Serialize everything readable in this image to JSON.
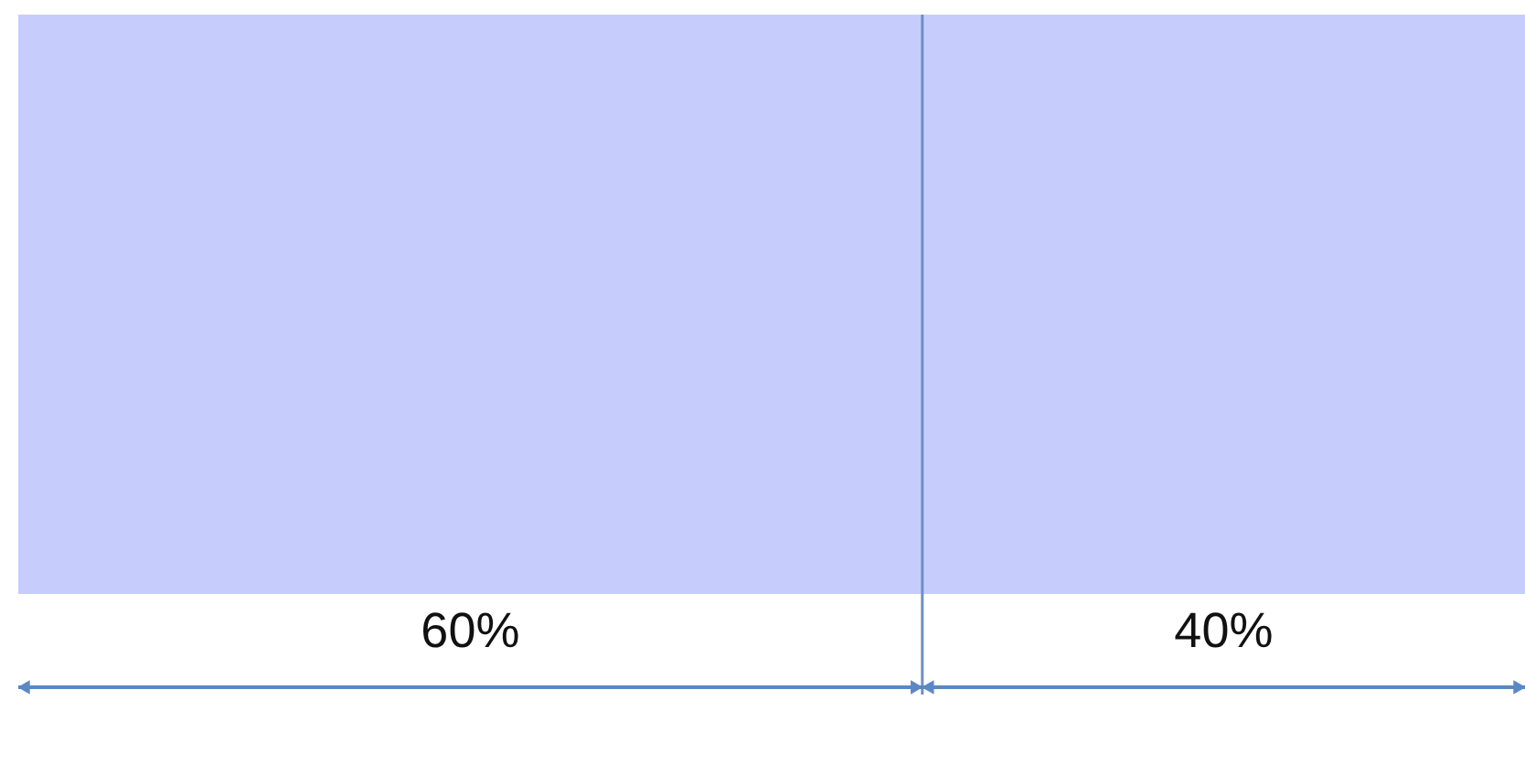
{
  "chart_data": {
    "type": "bar",
    "orientation": "horizontal",
    "stacked": true,
    "categories": [
      null
    ],
    "tick_labels": false,
    "ref_lines": [
      {
        "axis": "x",
        "value": 60,
        "color": "#6f8fc8"
      }
    ],
    "series": [
      {
        "color": "#c6cdfc",
        "values": [
          60
        ],
        "value_labels": [
          "60%"
        ]
      },
      {
        "color": "#c6cdfc",
        "values": [
          40
        ],
        "value_labels": [
          "40%"
        ]
      }
    ]
  }
}
